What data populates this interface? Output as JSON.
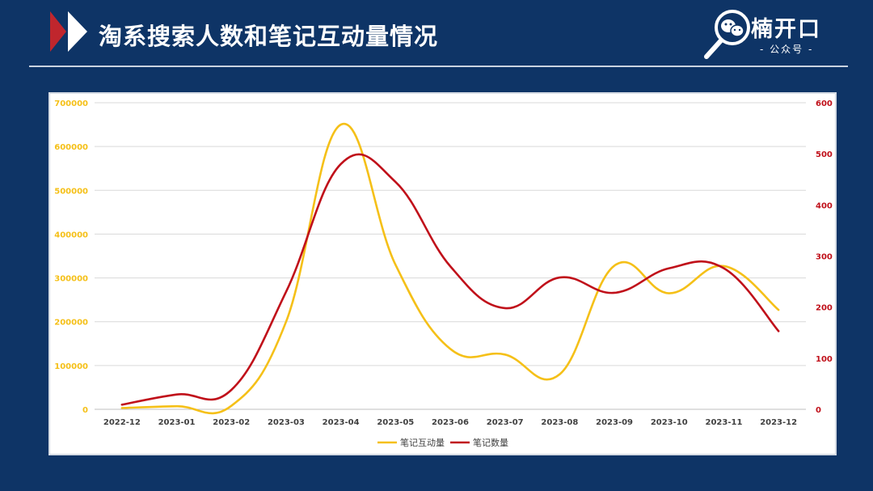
{
  "header": {
    "title": "淘系搜索人数和笔记互动量情况",
    "brand_name": "楠开口",
    "brand_sub": "- 公众号 -"
  },
  "colors": {
    "background": "#0e3466",
    "series_interaction": "#f5c018",
    "series_notes": "#c0101a",
    "accent_red": "#c0262d"
  },
  "icons": {
    "logo": "triangle-logo-icon",
    "brand": "magnifier-wechat-icon"
  },
  "chart_data": {
    "type": "line",
    "categories": [
      "2022-12",
      "2023-01",
      "2023-02",
      "2023-03",
      "2023-04",
      "2023-05",
      "2023-06",
      "2023-07",
      "2023-08",
      "2023-09",
      "2023-10",
      "2023-11",
      "2023-12"
    ],
    "y_left": {
      "ticks": [
        "0",
        "100000",
        "200000",
        "300000",
        "400000",
        "500000",
        "600000",
        "700000"
      ],
      "ylim": [
        0,
        700000
      ]
    },
    "y_right": {
      "ticks": [
        "0",
        "100",
        "200",
        "300",
        "400",
        "500",
        "600"
      ],
      "ylim": [
        0,
        600
      ]
    },
    "series": [
      {
        "name": "笔记互动量",
        "axis": "left",
        "values": [
          3000,
          7000,
          8000,
          200000,
          650000,
          330000,
          138000,
          125000,
          80000,
          328000,
          265000,
          327000,
          227000
        ]
      },
      {
        "name": "笔记数量",
        "axis": "right",
        "values": [
          9,
          29,
          38,
          230,
          480,
          445,
          280,
          198,
          258,
          228,
          276,
          276,
          153
        ]
      }
    ],
    "grid": true,
    "legend_position": "bottom"
  }
}
